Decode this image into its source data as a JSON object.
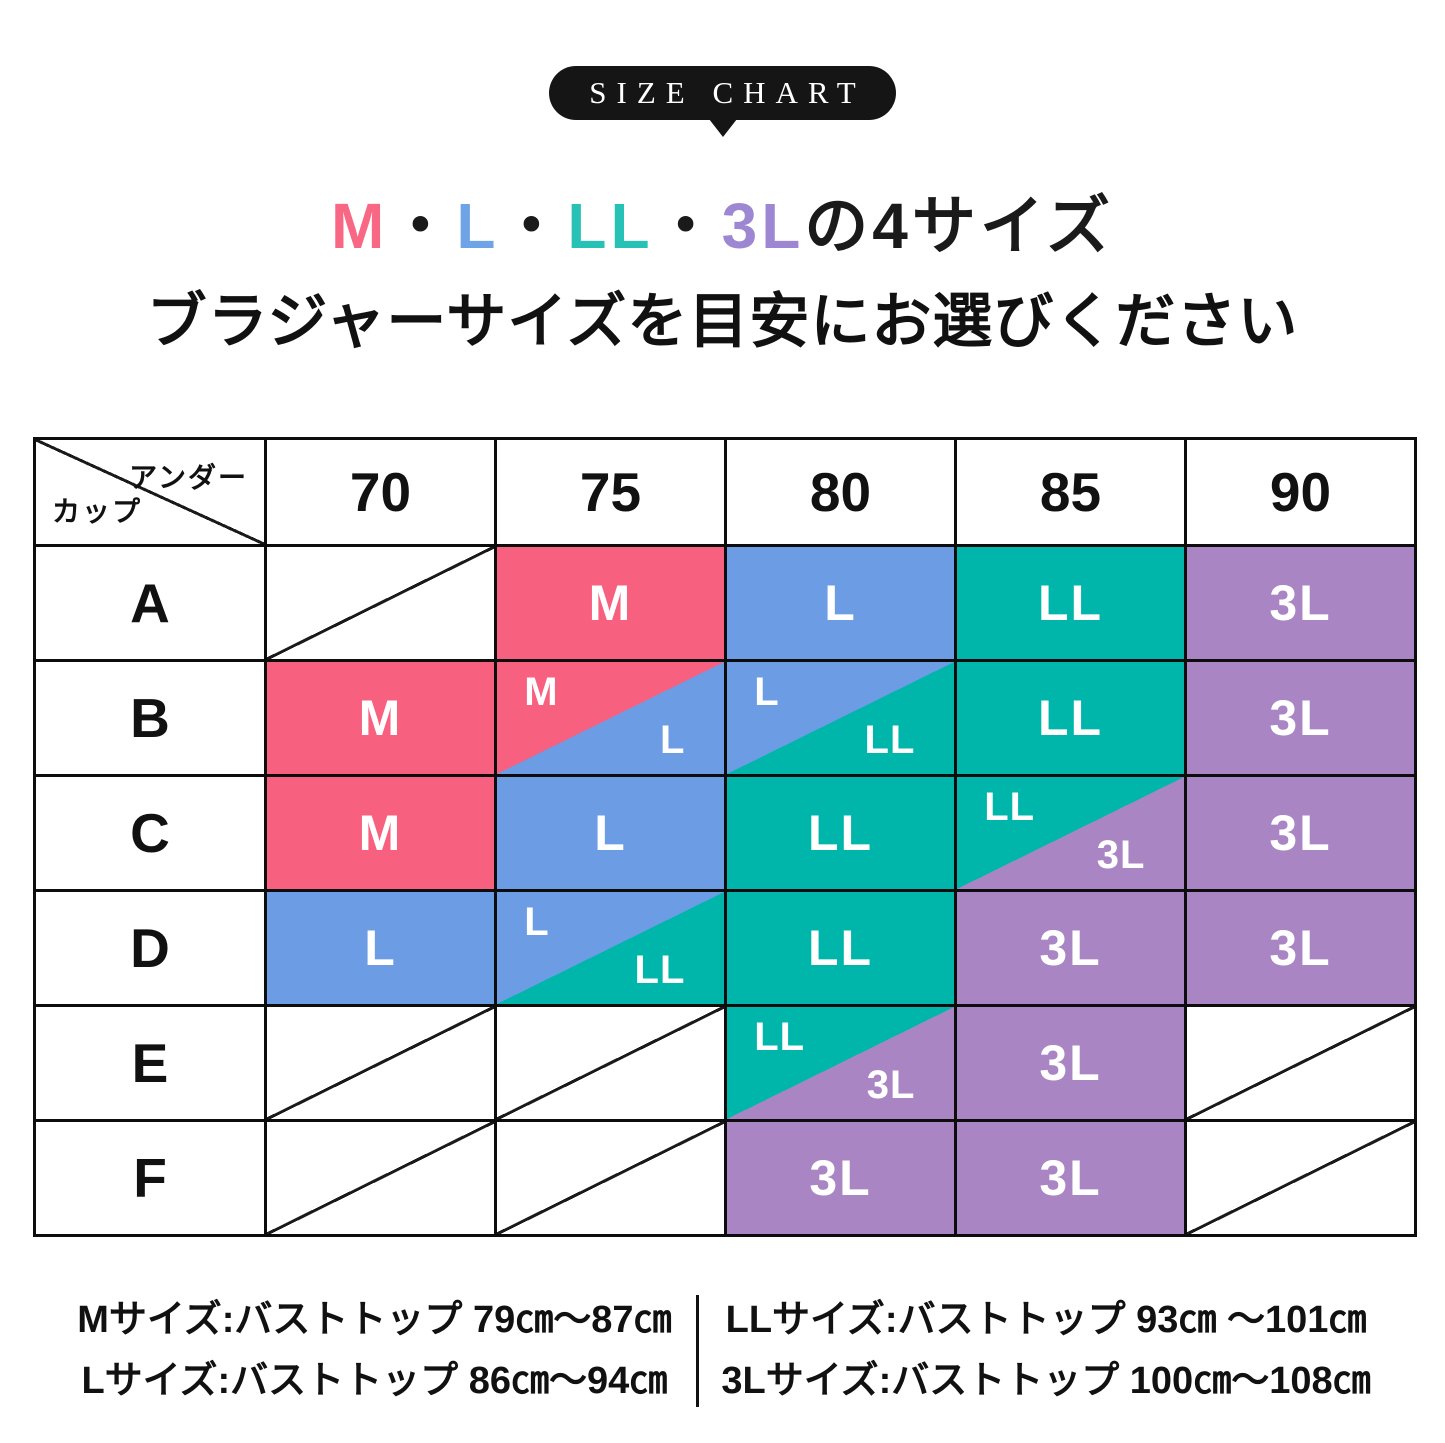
{
  "badge": {
    "label": "SIZE CHART"
  },
  "title": {
    "segments": [
      {
        "text": "M",
        "color": "#f86885"
      },
      {
        "text": "・",
        "color": "#1a1a1a"
      },
      {
        "text": "L",
        "color": "#6fa3e8"
      },
      {
        "text": "・",
        "color": "#1a1a1a"
      },
      {
        "text": "LL",
        "color": "#27c2b5"
      },
      {
        "text": "・",
        "color": "#1a1a1a"
      },
      {
        "text": "3L",
        "color": "#9d87d2"
      },
      {
        "text": "の4サイズ",
        "color": "#1a1a1a"
      }
    ],
    "line2": "ブラジャーサイズを目安にお選びください"
  },
  "size_colors": {
    "M": "#f8607f",
    "L": "#6c9ce3",
    "LL": "#00b6ab",
    "3L": "#a985c4"
  },
  "chart_data": {
    "type": "table",
    "title": "SIZE CHART",
    "column_header": "アンダー",
    "row_header": "カップ",
    "columns": [
      "70",
      "75",
      "80",
      "85",
      "90"
    ],
    "rows": [
      {
        "cup": "A",
        "cells": [
          {
            "type": "empty"
          },
          {
            "type": "full",
            "size": "M"
          },
          {
            "type": "full",
            "size": "L"
          },
          {
            "type": "full",
            "size": "LL"
          },
          {
            "type": "full",
            "size": "3L"
          }
        ]
      },
      {
        "cup": "B",
        "cells": [
          {
            "type": "full",
            "size": "M"
          },
          {
            "type": "split",
            "top_left": "M",
            "bottom_right": "L"
          },
          {
            "type": "split",
            "top_left": "L",
            "bottom_right": "LL"
          },
          {
            "type": "full",
            "size": "LL"
          },
          {
            "type": "full",
            "size": "3L"
          }
        ]
      },
      {
        "cup": "C",
        "cells": [
          {
            "type": "full",
            "size": "M"
          },
          {
            "type": "full",
            "size": "L"
          },
          {
            "type": "full",
            "size": "LL"
          },
          {
            "type": "split",
            "top_left": "LL",
            "bottom_right": "3L"
          },
          {
            "type": "full",
            "size": "3L"
          }
        ]
      },
      {
        "cup": "D",
        "cells": [
          {
            "type": "full",
            "size": "L"
          },
          {
            "type": "split",
            "top_left": "L",
            "bottom_right": "LL"
          },
          {
            "type": "full",
            "size": "LL"
          },
          {
            "type": "full",
            "size": "3L"
          },
          {
            "type": "full",
            "size": "3L"
          }
        ]
      },
      {
        "cup": "E",
        "cells": [
          {
            "type": "empty"
          },
          {
            "type": "empty"
          },
          {
            "type": "split",
            "top_left": "LL",
            "bottom_right": "3L"
          },
          {
            "type": "full",
            "size": "3L"
          },
          {
            "type": "empty"
          }
        ]
      },
      {
        "cup": "F",
        "cells": [
          {
            "type": "empty"
          },
          {
            "type": "empty"
          },
          {
            "type": "full",
            "size": "3L"
          },
          {
            "type": "full",
            "size": "3L"
          },
          {
            "type": "empty"
          }
        ]
      }
    ]
  },
  "notes": {
    "left": [
      "Mサイズ:バストトップ 79㎝〜87㎝",
      "Lサイズ:バストトップ 86㎝〜94㎝"
    ],
    "right": [
      "LLサイズ:バストトップ 93㎝ 〜101㎝",
      "3Lサイズ:バストトップ 100㎝〜108㎝"
    ]
  }
}
